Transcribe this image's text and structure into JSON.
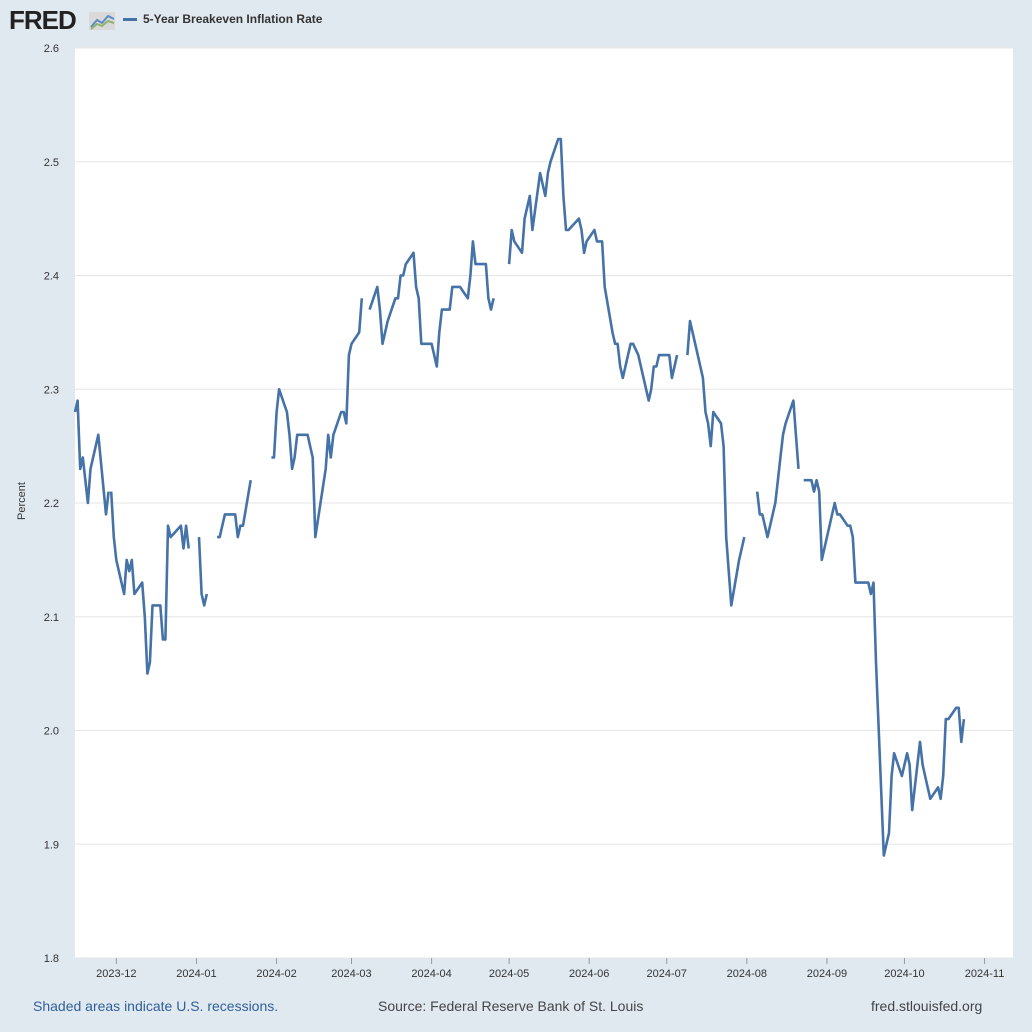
{
  "header": {
    "logo_text": "FRED",
    "logo_icon": "fred-chart-icon"
  },
  "footer": {
    "recessions_note": "Shaded areas indicate U.S. recessions.",
    "source": "Source: Federal Reserve Bank of St. Louis",
    "site": "fred.stlouisfed.org"
  },
  "colors": {
    "series": "#4572a7",
    "plot_background": "#ffffff",
    "page_background": "#e1e9f0",
    "grid": "#e6e6e6"
  },
  "chart_data": {
    "type": "line",
    "title": "",
    "xlabel": "",
    "ylabel": "Percent",
    "ylim": [
      1.8,
      2.6
    ],
    "yticks": [
      "1.8",
      "1.9",
      "2.0",
      "2.1",
      "2.2",
      "2.3",
      "2.4",
      "2.5",
      "2.6"
    ],
    "xlim": [
      "2023-11-15",
      "2024-11-12"
    ],
    "xticks": [
      "2023-12",
      "2024-01",
      "2024-02",
      "2024-03",
      "2024-04",
      "2024-05",
      "2024-06",
      "2024-07",
      "2024-08",
      "2024-09",
      "2024-10",
      "2024-11"
    ],
    "grid": true,
    "legend": "top-left",
    "series": [
      {
        "name": "5-Year Breakeven Inflation Rate",
        "segments": [
          [
            [
              "2023-11-15",
              2.28
            ],
            [
              "2023-11-16",
              2.29
            ],
            [
              "2023-11-17",
              2.23
            ],
            [
              "2023-11-18",
              2.24
            ],
            [
              "2023-11-20",
              2.2
            ],
            [
              "2023-11-21",
              2.23
            ],
            [
              "2023-11-24",
              2.26
            ],
            [
              "2023-11-27",
              2.19
            ],
            [
              "2023-11-28",
              2.21
            ]
          ],
          [
            [
              "2023-11-29",
              2.21
            ],
            [
              "2023-11-30",
              2.17
            ],
            [
              "2023-12-01",
              2.15
            ],
            [
              "2023-12-04",
              2.12
            ],
            [
              "2023-12-05",
              2.15
            ],
            [
              "2023-12-06",
              2.14
            ],
            [
              "2023-12-07",
              2.15
            ],
            [
              "2023-12-08",
              2.12
            ],
            [
              "2023-12-11",
              2.13
            ],
            [
              "2023-12-12",
              2.1
            ],
            [
              "2023-12-13",
              2.05
            ],
            [
              "2023-12-14",
              2.06
            ],
            [
              "2023-12-15",
              2.11
            ],
            [
              "2023-12-18",
              2.11
            ],
            [
              "2023-12-19",
              2.08
            ],
            [
              "2023-12-20",
              2.08
            ],
            [
              "2023-12-21",
              2.18
            ],
            [
              "2023-12-22",
              2.17
            ],
            [
              "2023-12-26",
              2.18
            ],
            [
              "2023-12-27",
              2.16
            ],
            [
              "2023-12-28",
              2.18
            ],
            [
              "2023-12-29",
              2.16
            ]
          ],
          [
            [
              "2024-01-02",
              2.17
            ],
            [
              "2024-01-03",
              2.12
            ],
            [
              "2024-01-04",
              2.11
            ],
            [
              "2024-01-05",
              2.12
            ]
          ],
          [
            [
              "2024-01-09",
              2.17
            ],
            [
              "2024-01-10",
              2.17
            ],
            [
              "2024-01-11",
              2.18
            ],
            [
              "2024-01-12",
              2.19
            ],
            [
              "2024-01-16",
              2.19
            ],
            [
              "2024-01-17",
              2.17
            ],
            [
              "2024-01-18",
              2.18
            ],
            [
              "2024-01-19",
              2.18
            ],
            [
              "2024-01-22",
              2.22
            ]
          ],
          [
            [
              "2024-01-30",
              2.24
            ],
            [
              "2024-01-31",
              2.24
            ],
            [
              "2024-02-01",
              2.28
            ],
            [
              "2024-02-02",
              2.3
            ],
            [
              "2024-02-05",
              2.28
            ],
            [
              "2024-02-06",
              2.26
            ],
            [
              "2024-02-07",
              2.23
            ],
            [
              "2024-02-08",
              2.24
            ],
            [
              "2024-02-09",
              2.26
            ],
            [
              "2024-02-12",
              2.26
            ],
            [
              "2024-02-13",
              2.26
            ],
            [
              "2024-02-14",
              2.25
            ],
            [
              "2024-02-15",
              2.24
            ],
            [
              "2024-02-16",
              2.17
            ],
            [
              "2024-02-20",
              2.23
            ],
            [
              "2024-02-21",
              2.26
            ],
            [
              "2024-02-22",
              2.24
            ],
            [
              "2024-02-23",
              2.26
            ],
            [
              "2024-02-26",
              2.28
            ],
            [
              "2024-02-27",
              2.28
            ],
            [
              "2024-02-28",
              2.27
            ],
            [
              "2024-02-29",
              2.33
            ],
            [
              "2024-03-01",
              2.34
            ],
            [
              "2024-03-04",
              2.35
            ],
            [
              "2024-03-05",
              2.38
            ]
          ],
          [
            [
              "2024-03-08",
              2.37
            ],
            [
              "2024-03-11",
              2.39
            ],
            [
              "2024-03-12",
              2.37
            ],
            [
              "2024-03-13",
              2.34
            ],
            [
              "2024-03-14",
              2.35
            ],
            [
              "2024-03-15",
              2.36
            ],
            [
              "2024-03-18",
              2.38
            ],
            [
              "2024-03-19",
              2.38
            ],
            [
              "2024-03-20",
              2.4
            ],
            [
              "2024-03-21",
              2.4
            ],
            [
              "2024-03-22",
              2.41
            ],
            [
              "2024-03-25",
              2.42
            ],
            [
              "2024-03-26",
              2.39
            ],
            [
              "2024-03-27",
              2.38
            ],
            [
              "2024-03-28",
              2.34
            ],
            [
              "2024-04-01",
              2.34
            ],
            [
              "2024-04-02",
              2.33
            ],
            [
              "2024-04-03",
              2.32
            ],
            [
              "2024-04-04",
              2.35
            ],
            [
              "2024-04-05",
              2.37
            ],
            [
              "2024-04-08",
              2.37
            ],
            [
              "2024-04-09",
              2.39
            ],
            [
              "2024-04-10",
              2.39
            ],
            [
              "2024-04-11",
              2.39
            ],
            [
              "2024-04-12",
              2.39
            ],
            [
              "2024-04-15",
              2.38
            ],
            [
              "2024-04-16",
              2.4
            ],
            [
              "2024-04-17",
              2.43
            ],
            [
              "2024-04-18",
              2.41
            ],
            [
              "2024-04-19",
              2.41
            ],
            [
              "2024-04-22",
              2.41
            ],
            [
              "2024-04-23",
              2.38
            ],
            [
              "2024-04-24",
              2.37
            ],
            [
              "2024-04-25",
              2.38
            ]
          ],
          [
            [
              "2024-05-01",
              2.41
            ],
            [
              "2024-05-02",
              2.44
            ],
            [
              "2024-05-03",
              2.43
            ],
            [
              "2024-05-06",
              2.42
            ],
            [
              "2024-05-07",
              2.45
            ],
            [
              "2024-05-08",
              2.46
            ],
            [
              "2024-05-09",
              2.47
            ],
            [
              "2024-05-10",
              2.44
            ],
            [
              "2024-05-13",
              2.49
            ],
            [
              "2024-05-14",
              2.48
            ],
            [
              "2024-05-15",
              2.47
            ],
            [
              "2024-05-16",
              2.49
            ],
            [
              "2024-05-17",
              2.5
            ],
            [
              "2024-05-20",
              2.52
            ],
            [
              "2024-05-21",
              2.52
            ],
            [
              "2024-05-22",
              2.47
            ],
            [
              "2024-05-23",
              2.44
            ],
            [
              "2024-05-24",
              2.44
            ],
            [
              "2024-05-28",
              2.45
            ],
            [
              "2024-05-29",
              2.44
            ],
            [
              "2024-05-30",
              2.42
            ],
            [
              "2024-05-31",
              2.43
            ],
            [
              "2024-06-03",
              2.44
            ],
            [
              "2024-06-04",
              2.43
            ],
            [
              "2024-06-05",
              2.43
            ],
            [
              "2024-06-06",
              2.43
            ],
            [
              "2024-06-07",
              2.39
            ],
            [
              "2024-06-10",
              2.35
            ],
            [
              "2024-06-11",
              2.34
            ],
            [
              "2024-06-12",
              2.34
            ],
            [
              "2024-06-13",
              2.32
            ],
            [
              "2024-06-14",
              2.31
            ],
            [
              "2024-06-17",
              2.34
            ],
            [
              "2024-06-18",
              2.34
            ],
            [
              "2024-06-20",
              2.33
            ],
            [
              "2024-06-21",
              2.32
            ],
            [
              "2024-06-24",
              2.29
            ],
            [
              "2024-06-25",
              2.3
            ],
            [
              "2024-06-26",
              2.32
            ],
            [
              "2024-06-27",
              2.32
            ],
            [
              "2024-06-28",
              2.33
            ],
            [
              "2024-07-01",
              2.33
            ],
            [
              "2024-07-02",
              2.33
            ],
            [
              "2024-07-03",
              2.31
            ],
            [
              "2024-07-05",
              2.33
            ]
          ],
          [
            [
              "2024-07-09",
              2.33
            ],
            [
              "2024-07-10",
              2.36
            ],
            [
              "2024-07-11",
              2.35
            ],
            [
              "2024-07-12",
              2.34
            ],
            [
              "2024-07-15",
              2.31
            ],
            [
              "2024-07-16",
              2.28
            ],
            [
              "2024-07-17",
              2.27
            ],
            [
              "2024-07-18",
              2.25
            ],
            [
              "2024-07-19",
              2.28
            ],
            [
              "2024-07-22",
              2.27
            ],
            [
              "2024-07-23",
              2.25
            ],
            [
              "2024-07-24",
              2.17
            ],
            [
              "2024-07-26",
              2.11
            ],
            [
              "2024-07-29",
              2.15
            ],
            [
              "2024-07-30",
              2.16
            ],
            [
              "2024-07-31",
              2.17
            ]
          ],
          [
            [
              "2024-08-05",
              2.21
            ],
            [
              "2024-08-06",
              2.19
            ],
            [
              "2024-08-07",
              2.19
            ],
            [
              "2024-08-08",
              2.18
            ],
            [
              "2024-08-09",
              2.17
            ],
            [
              "2024-08-12",
              2.2
            ],
            [
              "2024-08-13",
              2.22
            ],
            [
              "2024-08-14",
              2.24
            ],
            [
              "2024-08-15",
              2.26
            ],
            [
              "2024-08-16",
              2.27
            ],
            [
              "2024-08-19",
              2.29
            ],
            [
              "2024-08-20",
              2.26
            ],
            [
              "2024-08-21",
              2.23
            ]
          ],
          [
            [
              "2024-08-23",
              2.22
            ],
            [
              "2024-08-26",
              2.22
            ],
            [
              "2024-08-27",
              2.21
            ],
            [
              "2024-08-28",
              2.22
            ],
            [
              "2024-08-29",
              2.21
            ],
            [
              "2024-08-30",
              2.15
            ],
            [
              "2024-09-03",
              2.19
            ],
            [
              "2024-09-04",
              2.2
            ],
            [
              "2024-09-05",
              2.19
            ],
            [
              "2024-09-06",
              2.19
            ],
            [
              "2024-09-09",
              2.18
            ],
            [
              "2024-09-10",
              2.18
            ],
            [
              "2024-09-11",
              2.17
            ],
            [
              "2024-09-12",
              2.13
            ],
            [
              "2024-09-13",
              2.13
            ],
            [
              "2024-09-16",
              2.13
            ],
            [
              "2024-09-17",
              2.13
            ],
            [
              "2024-09-18",
              2.12
            ],
            [
              "2024-09-19",
              2.13
            ],
            [
              "2024-09-20",
              2.06
            ],
            [
              "2024-09-23",
              1.89
            ],
            [
              "2024-09-24",
              1.9
            ],
            [
              "2024-09-25",
              1.91
            ],
            [
              "2024-09-26",
              1.96
            ],
            [
              "2024-09-27",
              1.98
            ],
            [
              "2024-09-30",
              1.96
            ],
            [
              "2024-10-01",
              1.97
            ],
            [
              "2024-10-02",
              1.98
            ],
            [
              "2024-10-03",
              1.97
            ],
            [
              "2024-10-04",
              1.93
            ],
            [
              "2024-10-07",
              1.99
            ],
            [
              "2024-10-08",
              1.97
            ],
            [
              "2024-10-09",
              1.96
            ],
            [
              "2024-10-10",
              1.95
            ],
            [
              "2024-10-11",
              1.94
            ],
            [
              "2024-10-14",
              1.95
            ],
            [
              "2024-10-15",
              1.94
            ],
            [
              "2024-10-16",
              1.96
            ],
            [
              "2024-10-17",
              2.01
            ],
            [
              "2024-10-18",
              2.01
            ],
            [
              "2024-10-21",
              2.02
            ],
            [
              "2024-10-22",
              2.02
            ],
            [
              "2024-10-23",
              1.99
            ],
            [
              "2024-10-24",
              2.01
            ]
          ]
        ]
      }
    ]
  }
}
